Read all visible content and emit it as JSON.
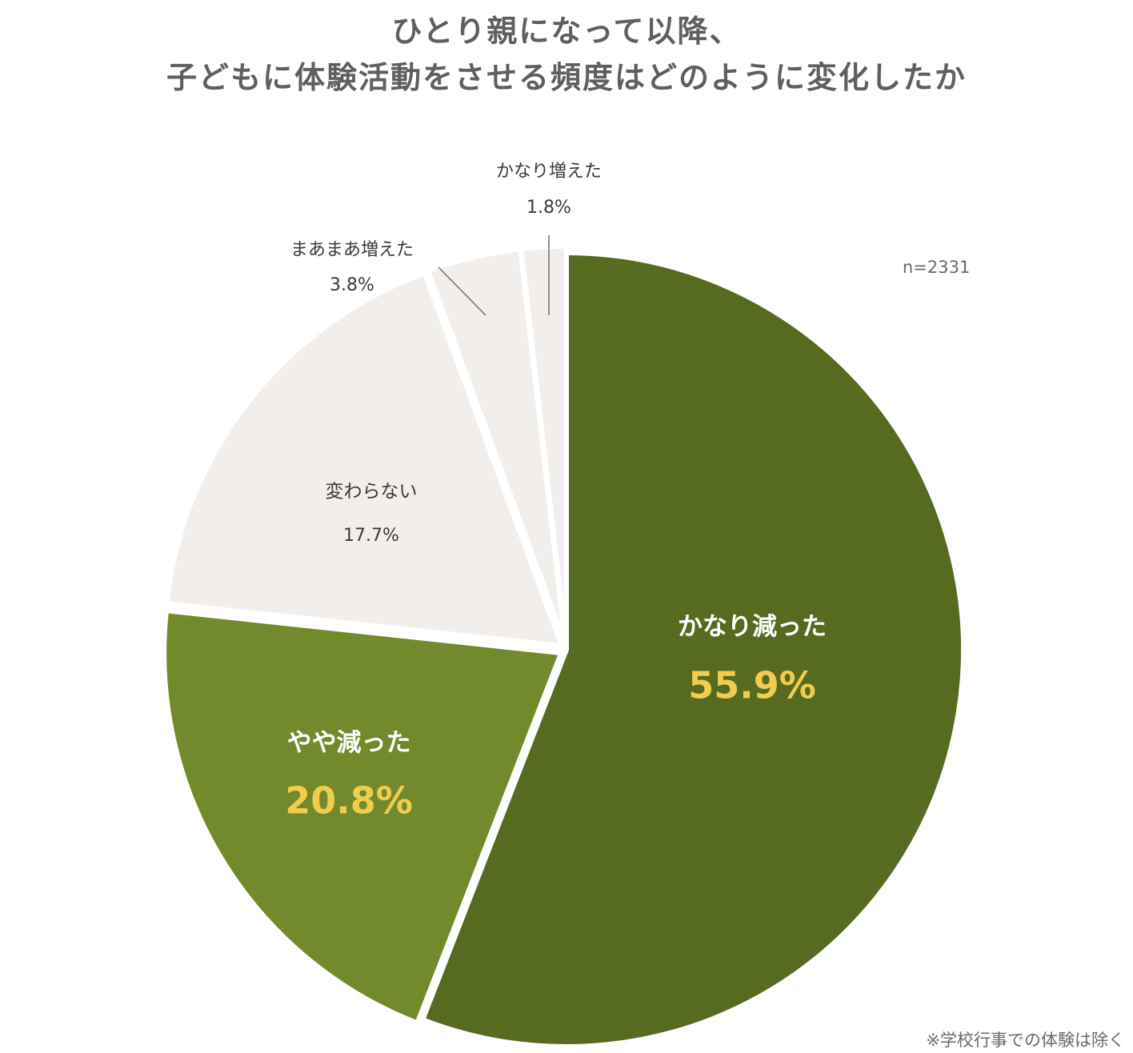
{
  "title": {
    "line1": "ひとり親になって以降、",
    "line2": "子どもに体験活動をさせる頻度はどのように変化したか"
  },
  "sample_size": "n=2331",
  "footnote": "※学校行事での体験は除く",
  "colors": {
    "dark_green": "#566a20",
    "light_green": "#728a2c",
    "beige": "#f1eeeb",
    "value_highlight": "#f2cc4e",
    "label_dark": "#3a3a3a",
    "label_light": "#ffffff"
  },
  "chart_data": {
    "type": "pie",
    "title": "ひとり親になって以降、子どもに体験活動をさせる頻度はどのように変化したか",
    "start": "12 o'clock",
    "direction": "clockwise",
    "slices": [
      {
        "label": "かなり減った",
        "value": 55.9,
        "value_label": "55.9%",
        "color": "#566a20"
      },
      {
        "label": "やや減った",
        "value": 20.8,
        "value_label": "20.8%",
        "color": "#728a2c"
      },
      {
        "label": "変わらない",
        "value": 17.7,
        "value_label": "17.7%",
        "color": "#f1eeeb"
      },
      {
        "label": "まあまあ増えた",
        "value": 3.8,
        "value_label": "3.8%",
        "color": "#f1eeeb"
      },
      {
        "label": "かなり増えた",
        "value": 1.8,
        "value_label": "1.8%",
        "color": "#f1eeeb"
      }
    ]
  }
}
